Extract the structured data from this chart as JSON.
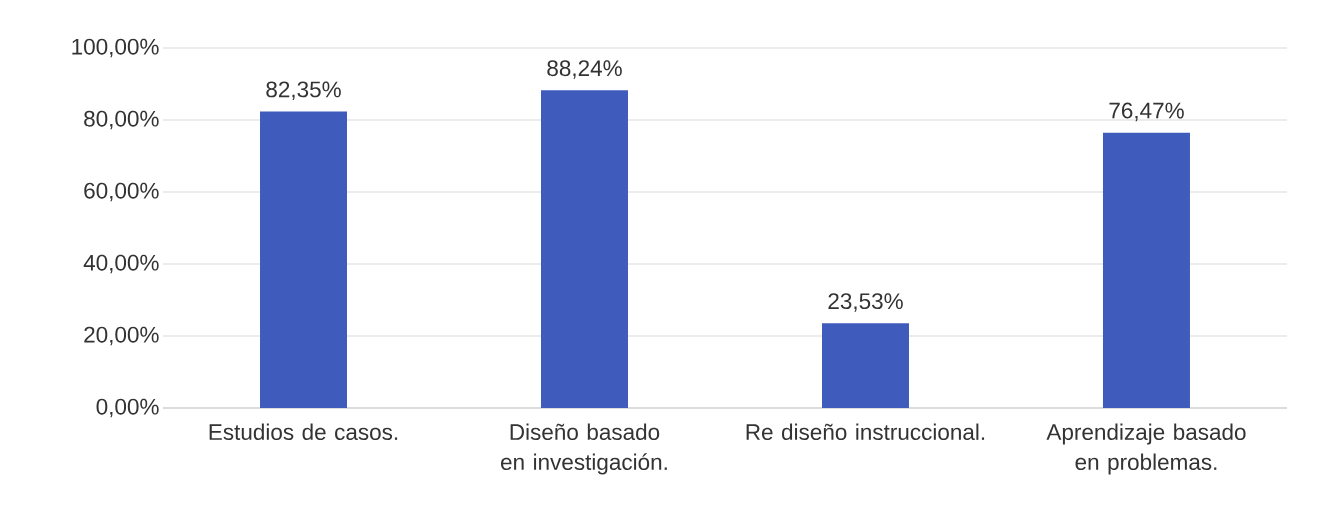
{
  "chart_data": {
    "type": "bar",
    "categories": [
      "Estudios de casos.",
      "Diseño basado en investigación.",
      "Re diseño instruccional.",
      "Aprendizaje basado en problemas."
    ],
    "values": [
      82.35,
      88.24,
      23.53,
      76.47
    ],
    "value_labels": [
      "82,35%",
      "88,24%",
      "23,53%",
      "76,47%"
    ],
    "color": "#3f5bbb",
    "ylim": [
      0,
      100
    ],
    "yticks": [
      {
        "value": 0,
        "label": "0,00%"
      },
      {
        "value": 20,
        "label": "20,00%"
      },
      {
        "value": 40,
        "label": "40,00%"
      },
      {
        "value": 60,
        "label": "60,00%"
      },
      {
        "value": 80,
        "label": "80,00%"
      },
      {
        "value": 100,
        "label": "100,00%"
      }
    ],
    "grid": "y"
  }
}
